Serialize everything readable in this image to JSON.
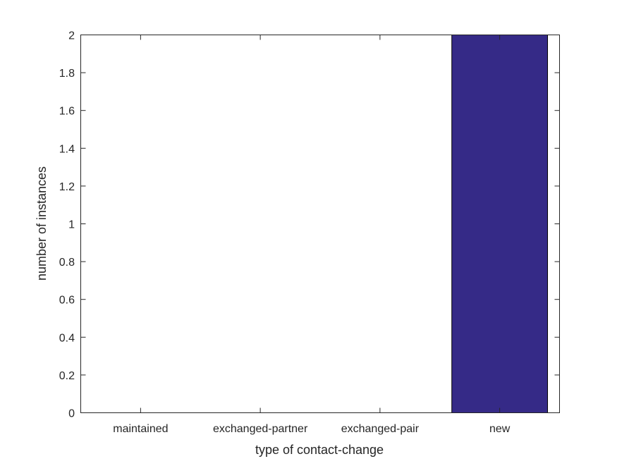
{
  "chart_data": {
    "type": "bar",
    "title": "",
    "xlabel": "type of contact-change",
    "ylabel": "number of instances",
    "categories": [
      "maintained",
      "exchanged-partner",
      "exchanged-pair",
      "new"
    ],
    "values": [
      0,
      0,
      0,
      2
    ],
    "ylim": [
      0,
      2
    ],
    "yticks": [
      "0",
      "0.2",
      "0.4",
      "0.6",
      "0.8",
      "1",
      "1.2",
      "1.4",
      "1.6",
      "1.8",
      "2"
    ],
    "grid": false,
    "legend": "none",
    "bar_color": "#352A87",
    "axis_color": "#262626"
  }
}
